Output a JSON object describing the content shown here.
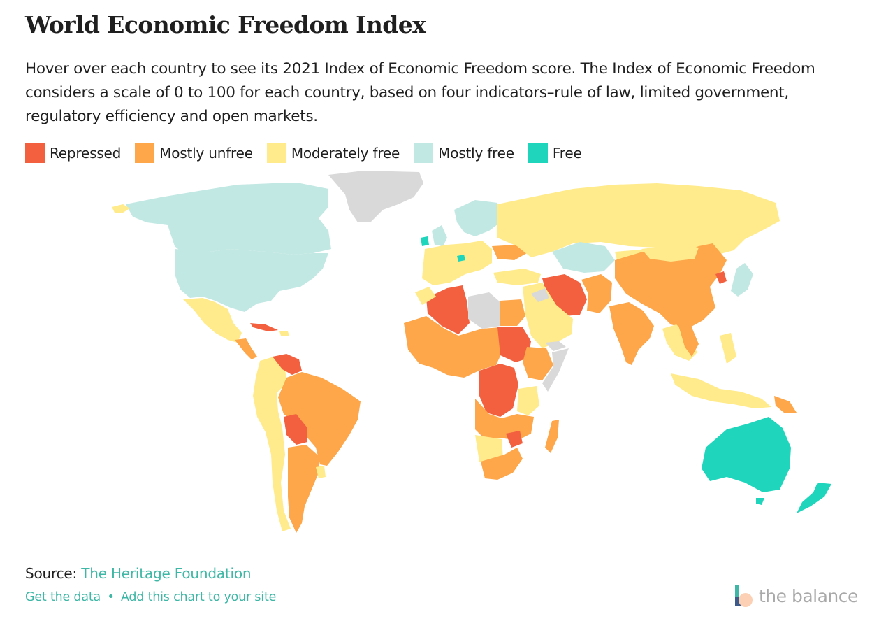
{
  "title": "World Economic Freedom Index",
  "subtitle": "Hover over each country to see its 2021 Index of Economic Freedom score. The Index of Economic Freedom considers a scale of 0 to 100 for each country, based on four indicators–rule of law, limited government, regulatory efficiency and open markets.",
  "legend": [
    {
      "label": "Repressed",
      "color": "#f2603f"
    },
    {
      "label": "Mostly unfree",
      "color": "#fda64a"
    },
    {
      "label": "Moderately free",
      "color": "#ffeb8c"
    },
    {
      "label": "Mostly free",
      "color": "#c2e8e3"
    },
    {
      "label": "Free",
      "color": "#1fd6bc"
    }
  ],
  "no_data_color": "#d9d9d9",
  "source": {
    "prefix": "Source:",
    "link": "The Heritage Foundation"
  },
  "links": {
    "get_data": "Get the data",
    "separator": "•",
    "add_chart": "Add this chart to your site"
  },
  "brand": {
    "name": "the balance"
  }
}
